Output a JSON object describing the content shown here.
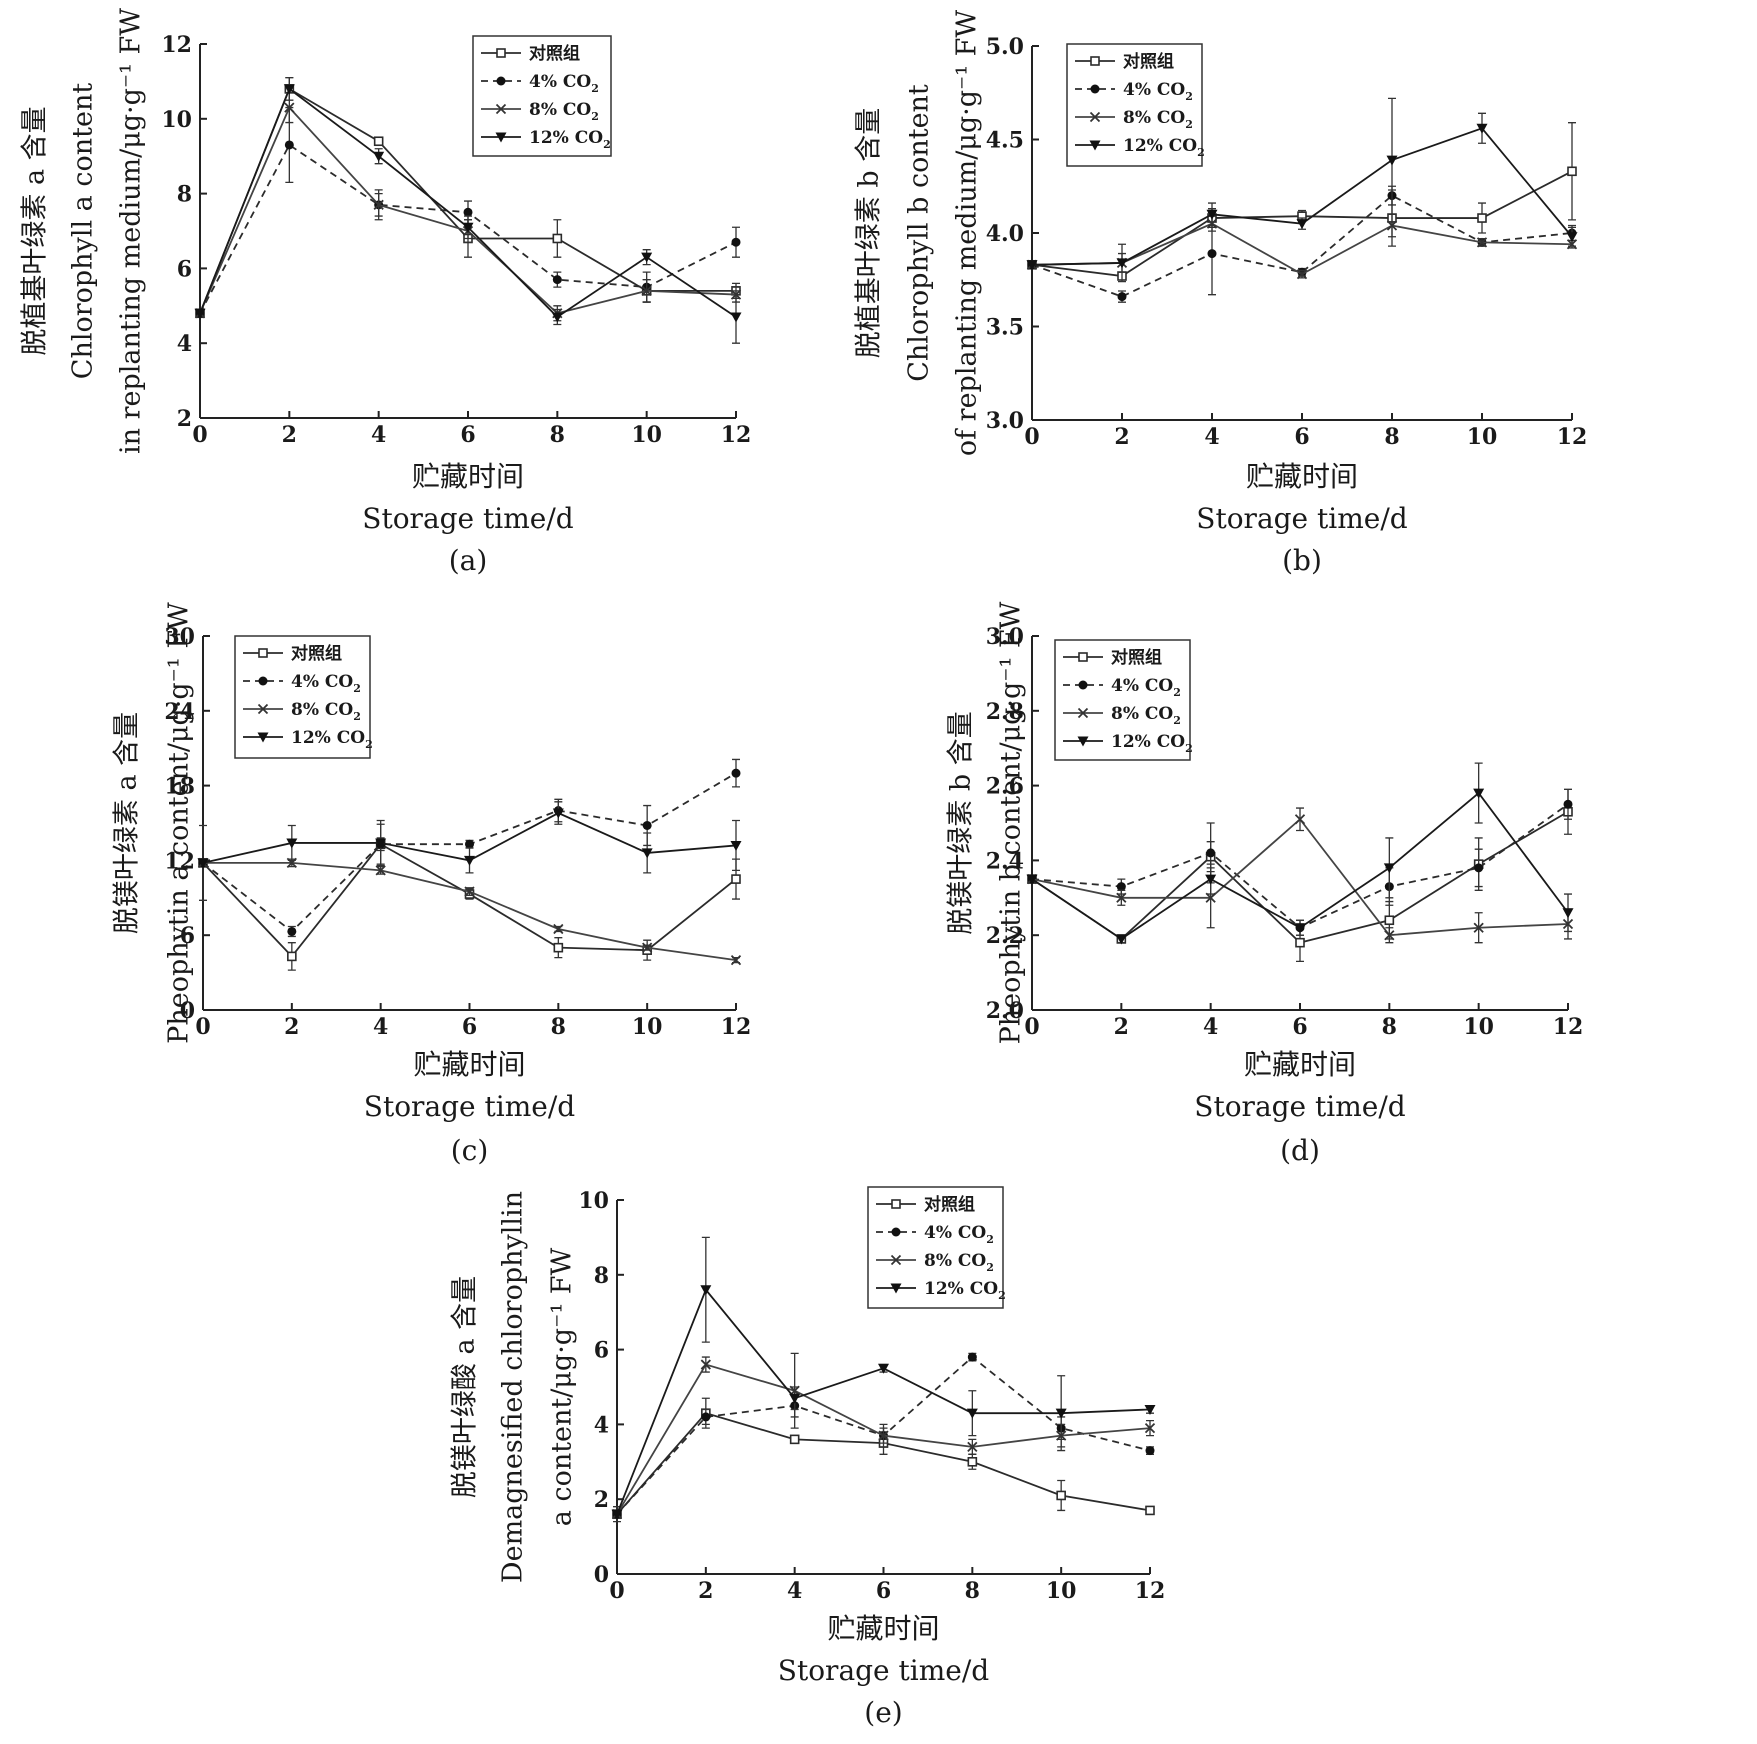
{
  "legend_labels": [
    "对照组",
    "4% CO",
    "8% CO",
    "12% CO"
  ],
  "legend_subscripts": [
    "",
    "2",
    "2",
    "2"
  ],
  "chart_data": [
    {
      "type": "line",
      "panel": "(a)",
      "ylabel": [
        "脱植基叶绿素 a 含量",
        "Chlorophyll a content",
        "in replanting medium/μg·g⁻¹ FW"
      ],
      "xlabel": [
        "贮藏时间",
        "Storage time/d"
      ],
      "x": [
        0,
        2,
        4,
        6,
        8,
        10,
        12
      ],
      "xlim": [
        0,
        12
      ],
      "ylim": [
        2,
        12
      ],
      "yticks": [
        2,
        4,
        6,
        8,
        10,
        12
      ],
      "xticks": [
        0,
        2,
        4,
        6,
        8,
        10,
        12
      ],
      "legend_position": "top-right",
      "series": [
        {
          "name": "对照组",
          "values": [
            4.8,
            10.8,
            9.4,
            6.8,
            6.8,
            5.4,
            5.4
          ],
          "errors": [
            0,
            0.3,
            0.1,
            0.5,
            0.5,
            0.3,
            0.2
          ]
        },
        {
          "name": "4% CO2",
          "values": [
            4.8,
            9.3,
            7.7,
            7.5,
            5.7,
            5.5,
            6.7
          ],
          "errors": [
            0,
            1.0,
            0.4,
            0.3,
            0.2,
            0.4,
            0.4
          ]
        },
        {
          "name": "8% CO2",
          "values": [
            4.8,
            10.3,
            7.7,
            7.0,
            4.8,
            5.4,
            5.3
          ],
          "errors": [
            0,
            0.4,
            0.3,
            0.3,
            0.2,
            0.3,
            0.2
          ]
        },
        {
          "name": "12% CO2",
          "values": [
            4.8,
            10.8,
            9.0,
            7.1,
            4.7,
            6.3,
            4.7
          ],
          "errors": [
            0,
            0.3,
            0.2,
            0.3,
            0.2,
            0.2,
            0.7
          ]
        }
      ]
    },
    {
      "type": "line",
      "panel": "(b)",
      "ylabel": [
        "脱植基叶绿素 b 含量",
        "Chlorophyll b content",
        "of replanting medium/μg·g⁻¹ FW"
      ],
      "xlabel": [
        "贮藏时间",
        "Storage time/d"
      ],
      "x": [
        0,
        2,
        4,
        6,
        8,
        10,
        12
      ],
      "xlim": [
        0,
        12
      ],
      "ylim": [
        3.0,
        5.0
      ],
      "yticks": [
        3.0,
        3.5,
        4.0,
        4.5,
        5.0
      ],
      "xticks": [
        0,
        2,
        4,
        6,
        8,
        10,
        12
      ],
      "legend_position": "top-left",
      "series": [
        {
          "name": "对照组",
          "values": [
            3.83,
            3.77,
            4.08,
            4.09,
            4.08,
            4.08,
            4.33
          ],
          "errors": [
            0,
            0.02,
            0.05,
            0.03,
            0.15,
            0.08,
            0.26
          ]
        },
        {
          "name": "4% CO2",
          "values": [
            3.83,
            3.66,
            3.89,
            3.79,
            4.2,
            3.95,
            4.0
          ],
          "errors": [
            0,
            0.03,
            0.22,
            0.02,
            0.05,
            0.02,
            0.04
          ]
        },
        {
          "name": "8% CO2",
          "values": [
            3.83,
            3.84,
            4.05,
            3.78,
            4.04,
            3.95,
            3.94
          ],
          "errors": [
            0,
            0.05,
            0.04,
            0.02,
            0.06,
            0.02,
            0.02
          ]
        },
        {
          "name": "12% CO2",
          "values": [
            3.83,
            3.84,
            4.1,
            4.05,
            4.39,
            4.56,
            3.98
          ],
          "errors": [
            0,
            0.1,
            0.06,
            0.03,
            0.33,
            0.08,
            0.05
          ]
        }
      ]
    },
    {
      "type": "line",
      "panel": "(c)",
      "ylabel": [
        "脱镁叶绿素 a 含量",
        "Pheophytin a content/μg·g⁻¹ FW"
      ],
      "xlabel": [
        "贮藏时间",
        "Storage time/d"
      ],
      "x": [
        0,
        2,
        4,
        6,
        8,
        10,
        12
      ],
      "xlim": [
        0,
        12
      ],
      "ylim": [
        0,
        30
      ],
      "yticks": [
        0,
        6,
        12,
        18,
        24,
        30
      ],
      "xticks": [
        0,
        2,
        4,
        6,
        8,
        10,
        12
      ],
      "legend_position": "top-left",
      "series": [
        {
          "name": "对照组",
          "values": [
            11.8,
            4.3,
            13.3,
            9.3,
            5.0,
            4.8,
            10.5
          ],
          "errors": [
            3.0,
            1.1,
            1.6,
            0.4,
            0.8,
            0.8,
            1.6
          ]
        },
        {
          "name": "4% CO2",
          "values": [
            11.8,
            6.3,
            13.3,
            13.3,
            16.0,
            14.8,
            19.0
          ],
          "errors": [
            0,
            0.4,
            0.5,
            0.3,
            0.9,
            1.6,
            1.1
          ]
        },
        {
          "name": "8% CO2",
          "values": [
            11.8,
            11.8,
            11.2,
            9.5,
            6.5,
            5.0,
            4.0
          ],
          "errors": [
            0,
            0.3,
            0.3,
            0.3,
            0.2,
            0.2,
            0.2
          ]
        },
        {
          "name": "12% CO2",
          "values": [
            11.8,
            13.4,
            13.4,
            12.0,
            15.8,
            12.6,
            13.2
          ],
          "errors": [
            0,
            1.4,
            1.8,
            1.0,
            0.9,
            1.6,
            2.0
          ]
        }
      ]
    },
    {
      "type": "line",
      "panel": "(d)",
      "ylabel": [
        "脱镁叶绿素 b 含量",
        "Pheophytin b content/μg·g⁻¹ FW"
      ],
      "xlabel": [
        "贮藏时间",
        "Storage time/d"
      ],
      "x": [
        0,
        2,
        4,
        6,
        8,
        10,
        12
      ],
      "xlim": [
        0,
        12
      ],
      "ylim": [
        2.0,
        3.0
      ],
      "yticks": [
        2.0,
        2.2,
        2.4,
        2.6,
        2.8,
        3.0
      ],
      "xticks": [
        0,
        2,
        4,
        6,
        8,
        10,
        12
      ],
      "legend_position": "top-left",
      "series": [
        {
          "name": "对照组",
          "values": [
            2.35,
            2.19,
            2.41,
            2.18,
            2.24,
            2.39,
            2.53
          ],
          "errors": [
            0,
            0.01,
            0.04,
            0.05,
            0.05,
            0.07,
            0.06
          ]
        },
        {
          "name": "4% CO2",
          "values": [
            2.35,
            2.33,
            2.42,
            2.22,
            2.33,
            2.38,
            2.55
          ],
          "errors": [
            0,
            0.02,
            0.08,
            0.02,
            0.05,
            0.05,
            0.04
          ]
        },
        {
          "name": "8% CO2",
          "values": [
            2.35,
            2.3,
            2.3,
            2.51,
            2.2,
            2.22,
            2.23
          ],
          "errors": [
            0,
            0.02,
            0.08,
            0.03,
            0.02,
            0.04,
            0.04
          ]
        },
        {
          "name": "12% CO2",
          "values": [
            2.35,
            2.19,
            2.35,
            2.22,
            2.38,
            2.58,
            2.26
          ],
          "errors": [
            0,
            0.01,
            0.04,
            0.02,
            0.08,
            0.08,
            0.05
          ]
        }
      ]
    },
    {
      "type": "line",
      "panel": "(e)",
      "ylabel": [
        "脱镁叶绿酸 a 含量",
        "Demagnesified chlorophyllin",
        "a content/μg·g⁻¹ FW"
      ],
      "xlabel": [
        "贮藏时间",
        "Storage time/d"
      ],
      "x": [
        0,
        2,
        4,
        6,
        8,
        10,
        12
      ],
      "xlim": [
        0,
        12
      ],
      "ylim": [
        0,
        10
      ],
      "yticks": [
        0,
        2,
        4,
        6,
        8,
        10
      ],
      "xticks": [
        0,
        2,
        4,
        6,
        8,
        10,
        12
      ],
      "legend_position": "top-right",
      "series": [
        {
          "name": "对照组",
          "values": [
            1.6,
            4.3,
            3.6,
            3.5,
            3.0,
            2.1,
            1.7
          ],
          "errors": [
            0.2,
            0.4,
            0.1,
            0.3,
            0.2,
            0.4,
            0.1
          ]
        },
        {
          "name": "4% CO2",
          "values": [
            1.6,
            4.2,
            4.5,
            3.7,
            5.8,
            3.9,
            3.3
          ],
          "errors": [
            0,
            0.2,
            0.3,
            0.2,
            0.1,
            0.3,
            0.1
          ]
        },
        {
          "name": "8% CO2",
          "values": [
            1.6,
            5.6,
            4.9,
            3.7,
            3.4,
            3.7,
            3.9
          ],
          "errors": [
            0,
            0.2,
            1.0,
            0.3,
            0.2,
            0.3,
            0.2
          ]
        },
        {
          "name": "12% CO2",
          "values": [
            1.6,
            7.6,
            4.7,
            5.5,
            4.3,
            4.3,
            4.4
          ],
          "errors": [
            0,
            1.4,
            0.3,
            0.1,
            0.6,
            1.0,
            0.1
          ]
        }
      ]
    }
  ]
}
